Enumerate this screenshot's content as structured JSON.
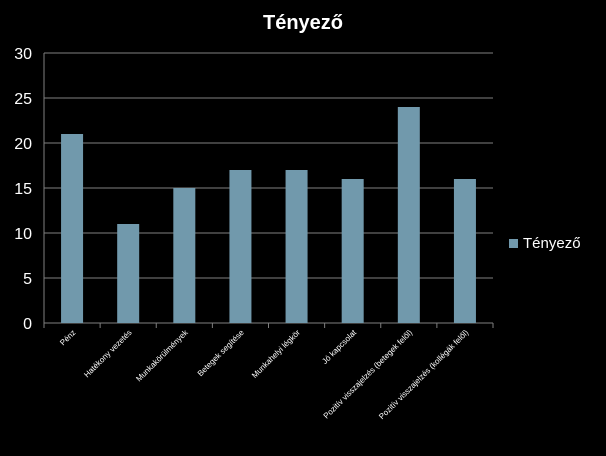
{
  "chart_data": {
    "type": "bar",
    "title": "Tényező",
    "categories": [
      "Pénz",
      "Hatékony vezetés",
      "Munkakörülmények",
      "Betegek segítése",
      "Munkahelyi légkör",
      "Jó kapcsolat",
      "Pozitív visszajelzés (betegek felől)",
      "Pozitív visszajelzés (kollégák felől)"
    ],
    "series": [
      {
        "name": "Tényező",
        "values": [
          21,
          11,
          15,
          17,
          17,
          16,
          24,
          16
        ]
      }
    ],
    "ylim": [
      0,
      30
    ],
    "yticks": [
      0,
      5,
      10,
      15,
      20,
      25,
      30
    ],
    "grid": true,
    "legend_position": "right",
    "colors": {
      "bar": "#7199ac",
      "background": "#000000",
      "gridline": "#7f7f7f",
      "text": "#ffffff"
    }
  }
}
